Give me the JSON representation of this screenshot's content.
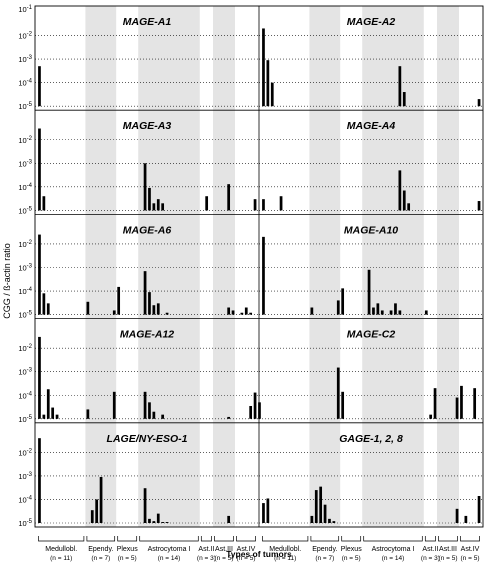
{
  "chart_data": {
    "type": "bar",
    "ylabel": "CGG / ß-actin ratio",
    "xlabel": "Types of tumors",
    "yscale": "log",
    "ylim": [
      1e-05,
      0.1
    ],
    "y_ticks": [
      {
        "value": 1e-05,
        "base": "10",
        "exp": "-5"
      },
      {
        "value": 0.0001,
        "base": "10",
        "exp": "-4"
      },
      {
        "value": 0.001,
        "base": "10",
        "exp": "-3"
      },
      {
        "value": 0.01,
        "base": "10",
        "exp": "-2"
      }
    ],
    "top_tick": {
      "value": 0.1,
      "base": "10",
      "exp": "-1"
    },
    "groups": [
      {
        "name": "Medullobl.",
        "n": "(n = 11)",
        "size": 11,
        "shaded": false
      },
      {
        "name": "Ependy.",
        "n": "(n = 7)",
        "size": 7,
        "shaded": true
      },
      {
        "name": "Plexus",
        "n": "(n = 5)",
        "size": 5,
        "shaded": false
      },
      {
        "name": "Astrocytoma I",
        "n": "(n = 14)",
        "size": 14,
        "shaded": true
      },
      {
        "name": "Ast.II",
        "n": "(n = 3)",
        "size": 3,
        "shaded": false
      },
      {
        "name": "Ast.III",
        "n": "(n = 5)",
        "size": 5,
        "shaded": true
      },
      {
        "name": "Ast.IV",
        "n": "(n = 5)",
        "size": 5,
        "shaded": false
      }
    ],
    "panels": [
      {
        "title": "MAGE-A1",
        "bars": [
          [
            0,
            0.0005
          ]
        ]
      },
      {
        "title": "MAGE-A2",
        "bars": [
          [
            0,
            0.02
          ],
          [
            1,
            0.0009
          ],
          [
            2,
            0.0001
          ],
          [
            31,
            0.0005
          ],
          [
            32,
            4e-05
          ],
          [
            49,
            2e-05
          ]
        ]
      },
      {
        "title": "MAGE-A3",
        "bars": [
          [
            0,
            0.03
          ],
          [
            1,
            4e-05
          ],
          [
            24,
            0.001
          ],
          [
            25,
            9e-05
          ],
          [
            26,
            2e-05
          ],
          [
            27,
            3e-05
          ],
          [
            28,
            2e-05
          ],
          [
            38,
            4e-05
          ],
          [
            43,
            0.00013
          ],
          [
            49,
            3e-05
          ]
        ]
      },
      {
        "title": "MAGE-A4",
        "bars": [
          [
            0,
            3e-05
          ],
          [
            4,
            4e-05
          ],
          [
            31,
            0.0005
          ],
          [
            32,
            7e-05
          ],
          [
            33,
            2e-05
          ],
          [
            49,
            2.5e-05
          ]
        ]
      },
      {
        "title": "MAGE-A6",
        "bars": [
          [
            0,
            0.025
          ],
          [
            1,
            8e-05
          ],
          [
            2,
            3e-05
          ],
          [
            11,
            3.5e-05
          ],
          [
            17,
            1.5e-05
          ],
          [
            18,
            0.00015
          ],
          [
            24,
            0.0007
          ],
          [
            25,
            9e-05
          ],
          [
            26,
            2.5e-05
          ],
          [
            27,
            3e-05
          ],
          [
            29,
            1.2e-05
          ],
          [
            43,
            2e-05
          ],
          [
            44,
            1.5e-05
          ],
          [
            46,
            1.2e-05
          ],
          [
            47,
            2e-05
          ],
          [
            48,
            1.2e-05
          ]
        ]
      },
      {
        "title": "MAGE-A10",
        "bars": [
          [
            0,
            0.02
          ],
          [
            11,
            2e-05
          ],
          [
            17,
            4e-05
          ],
          [
            18,
            0.00013
          ],
          [
            24,
            0.0008
          ],
          [
            25,
            2e-05
          ],
          [
            26,
            3e-05
          ],
          [
            27,
            1.5e-05
          ],
          [
            29,
            1.5e-05
          ],
          [
            30,
            3e-05
          ],
          [
            31,
            1.5e-05
          ],
          [
            37,
            1.5e-05
          ]
        ]
      },
      {
        "title": "MAGE-A12",
        "bars": [
          [
            0,
            0.03
          ],
          [
            1,
            1.5e-05
          ],
          [
            2,
            0.00018
          ],
          [
            3,
            3e-05
          ],
          [
            4,
            1.5e-05
          ],
          [
            11,
            2.5e-05
          ],
          [
            17,
            0.00014
          ],
          [
            24,
            0.00014
          ],
          [
            25,
            5e-05
          ],
          [
            26,
            2e-05
          ],
          [
            28,
            1.5e-05
          ],
          [
            43,
            1.2e-05
          ],
          [
            48,
            3.5e-05
          ],
          [
            49,
            0.00013
          ],
          [
            50,
            5e-05
          ]
        ]
      },
      {
        "title": "MAGE-C2",
        "bars": [
          [
            17,
            0.0015
          ],
          [
            18,
            0.00014
          ],
          [
            38,
            1.5e-05
          ],
          [
            39,
            0.0002
          ],
          [
            44,
            8e-05
          ],
          [
            45,
            0.00025
          ],
          [
            48,
            0.0002
          ]
        ]
      },
      {
        "title": "LAGE/NY-ESO-1",
        "bars": [
          [
            0,
            0.04
          ],
          [
            11,
            1e-05
          ],
          [
            12,
            3.5e-05
          ],
          [
            13,
            0.0001
          ],
          [
            14,
            0.0009
          ],
          [
            24,
            0.0003
          ],
          [
            25,
            1.5e-05
          ],
          [
            26,
            1.2e-05
          ],
          [
            27,
            2.5e-05
          ],
          [
            28,
            1.1e-05
          ],
          [
            29,
            1.1e-05
          ],
          [
            43,
            2e-05
          ]
        ]
      },
      {
        "title": "GAGE-1, 2, 8",
        "bars": [
          [
            0,
            7e-05
          ],
          [
            1,
            0.00011
          ],
          [
            11,
            2e-05
          ],
          [
            12,
            0.00025
          ],
          [
            13,
            0.00035
          ],
          [
            14,
            6e-05
          ],
          [
            15,
            1.5e-05
          ],
          [
            16,
            1.2e-05
          ],
          [
            44,
            4e-05
          ],
          [
            46,
            2e-05
          ],
          [
            49,
            0.00014
          ]
        ]
      }
    ]
  }
}
